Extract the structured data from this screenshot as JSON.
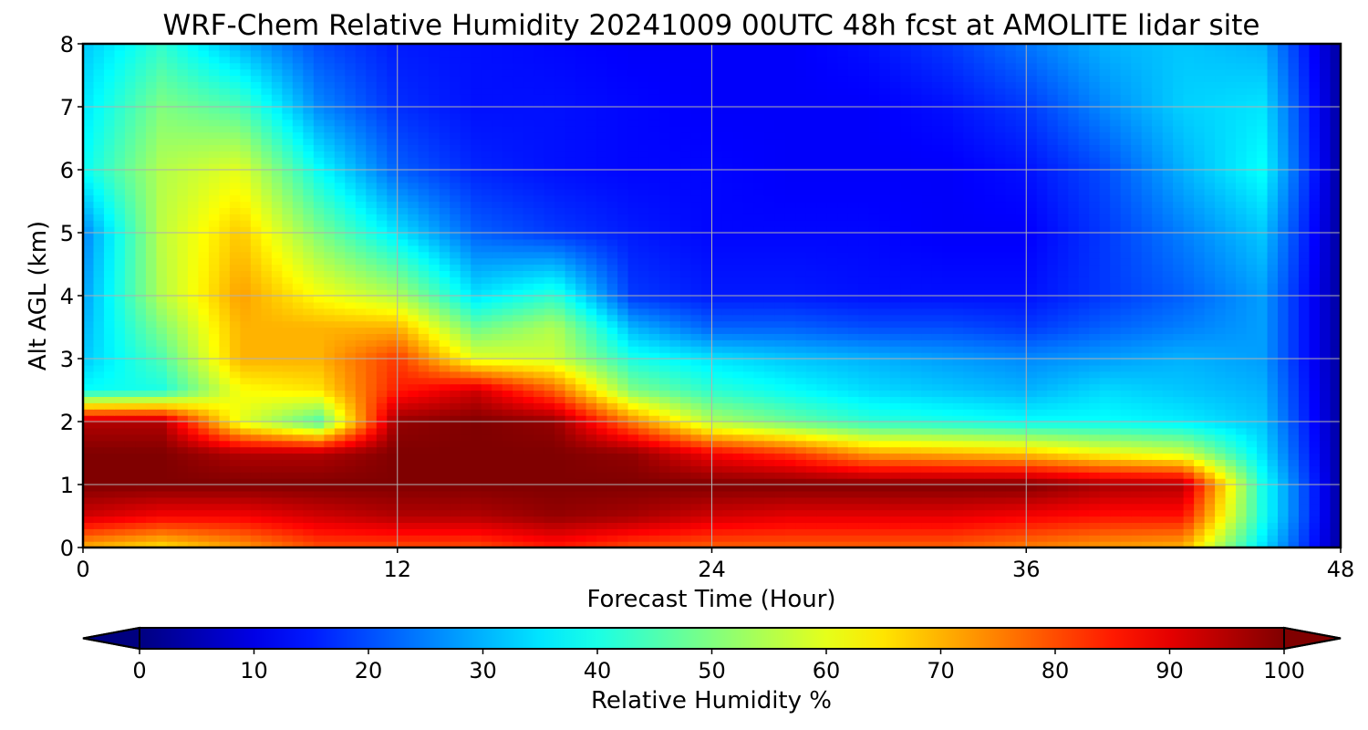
{
  "chart_data": {
    "type": "heatmap",
    "title": "WRF-Chem Relative Humidity 20241009 00UTC 48h fcst at AMOLITE lidar site",
    "xlabel": "Forecast Time (Hour)",
    "ylabel": "Alt AGL (km)",
    "xlim": [
      0,
      48
    ],
    "ylim": [
      0,
      8
    ],
    "x_ticks": [
      0,
      12,
      24,
      36,
      48
    ],
    "y_ticks": [
      0,
      1,
      2,
      3,
      4,
      5,
      6,
      7,
      8
    ],
    "grid": true,
    "colormap": "jet",
    "colorbar": {
      "label": "Relative Humidity %",
      "min": 0,
      "max": 100,
      "ticks": [
        0,
        10,
        20,
        30,
        40,
        50,
        60,
        70,
        80,
        90,
        100
      ],
      "extend": "both",
      "placement": "bottom"
    },
    "x": [
      0,
      3,
      6,
      9,
      12,
      15,
      18,
      21,
      24,
      27,
      30,
      33,
      36,
      39,
      42,
      45,
      48
    ],
    "y": [
      0,
      0.5,
      1,
      1.5,
      2,
      2.5,
      3,
      3.5,
      4,
      5,
      6,
      7,
      8
    ],
    "z": [
      [
        70,
        65,
        72,
        80,
        80,
        80,
        85,
        80,
        78,
        78,
        78,
        78,
        75,
        72,
        70,
        35,
        3
      ],
      [
        92,
        88,
        88,
        92,
        95,
        95,
        98,
        96,
        92,
        90,
        90,
        90,
        88,
        86,
        86,
        40,
        3
      ],
      [
        100,
        100,
        100,
        100,
        100,
        100,
        100,
        100,
        100,
        100,
        100,
        100,
        100,
        96,
        95,
        40,
        3
      ],
      [
        100,
        100,
        95,
        95,
        100,
        100,
        100,
        98,
        88,
        82,
        72,
        70,
        68,
        62,
        58,
        35,
        3
      ],
      [
        95,
        95,
        60,
        45,
        98,
        100,
        98,
        75,
        55,
        48,
        42,
        40,
        38,
        38,
        36,
        32,
        3
      ],
      [
        38,
        40,
        62,
        65,
        85,
        92,
        78,
        50,
        42,
        38,
        34,
        32,
        30,
        34,
        32,
        30,
        3
      ],
      [
        32,
        45,
        70,
        70,
        82,
        60,
        58,
        40,
        35,
        32,
        30,
        28,
        26,
        28,
        30,
        28,
        3
      ],
      [
        30,
        50,
        70,
        70,
        70,
        48,
        55,
        30,
        22,
        22,
        20,
        20,
        18,
        22,
        25,
        28,
        3
      ],
      [
        28,
        55,
        72,
        62,
        55,
        35,
        42,
        18,
        15,
        15,
        14,
        14,
        14,
        18,
        22,
        28,
        3
      ],
      [
        25,
        56,
        68,
        50,
        35,
        22,
        18,
        15,
        13,
        13,
        13,
        12,
        12,
        18,
        25,
        32,
        3
      ],
      [
        38,
        55,
        60,
        38,
        22,
        16,
        14,
        13,
        13,
        12,
        12,
        12,
        14,
        20,
        30,
        38,
        3
      ],
      [
        35,
        50,
        45,
        26,
        17,
        14,
        14,
        13,
        12,
        12,
        12,
        14,
        18,
        26,
        33,
        35,
        3
      ],
      [
        32,
        42,
        30,
        20,
        15,
        14,
        13,
        12,
        12,
        12,
        14,
        18,
        24,
        30,
        32,
        30,
        3
      ]
    ]
  }
}
